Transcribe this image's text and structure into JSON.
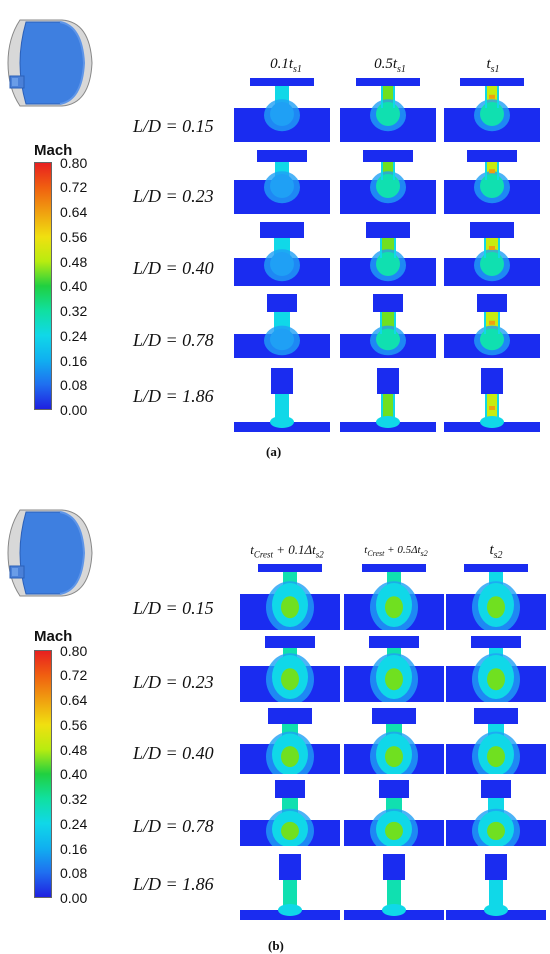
{
  "panel_a": {
    "label": "(a)",
    "legend_title": "Mach",
    "legend_ticks": [
      "0.80",
      "0.72",
      "0.64",
      "0.56",
      "0.48",
      "0.40",
      "0.32",
      "0.24",
      "0.16",
      "0.08",
      "0.00"
    ],
    "columns": [
      "0.1t_s1",
      "0.5t_s1",
      "t_s1"
    ],
    "rows": [
      "L/D = 0.15",
      "L/D = 0.23",
      "L/D = 0.40",
      "L/D = 0.78",
      "L/D = 1.86"
    ]
  },
  "panel_b": {
    "label": "(b)",
    "legend_title": "Mach",
    "legend_ticks": [
      "0.80",
      "0.72",
      "0.64",
      "0.56",
      "0.48",
      "0.40",
      "0.32",
      "0.24",
      "0.16",
      "0.08",
      "0.00"
    ],
    "columns": [
      "t_Crest + 0.1Δt_s2",
      "t_Crest + 0.5Δt_s2",
      "t_s2"
    ],
    "rows": [
      "L/D = 0.15",
      "L/D = 0.23",
      "L/D = 0.40",
      "L/D = 0.78",
      "L/D = 1.86"
    ]
  },
  "colors": {
    "jet": [
      "#1f1fe0",
      "#1f5ff0",
      "#1fa0f5",
      "#10d8e8",
      "#10e0b0",
      "#20d050",
      "#70e020",
      "#c8ec10",
      "#f0e010",
      "#f0a010",
      "#f05010",
      "#e82020"
    ],
    "cavity": "#1a2cf0",
    "mach_max": "#e8262a"
  }
}
